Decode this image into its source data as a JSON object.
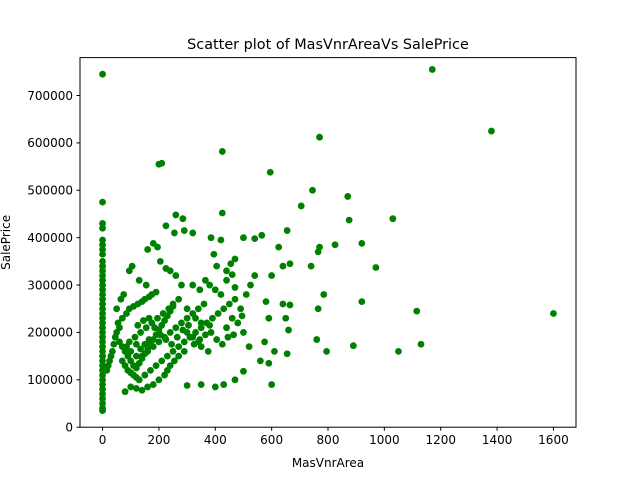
{
  "chart_data": {
    "type": "scatter",
    "title": "Scatter plot of MasVnrAreaVs SalePrice",
    "xlabel": "MasVnrArea",
    "ylabel": "SalePrice",
    "xlim": [
      -80,
      1680
    ],
    "ylim": [
      0,
      780000
    ],
    "xticks": [
      0,
      200,
      400,
      600,
      800,
      1000,
      1200,
      1400,
      1600
    ],
    "yticks": [
      0,
      100000,
      200000,
      300000,
      400000,
      500000,
      600000,
      700000
    ],
    "marker_color": "#008000",
    "grid": false,
    "points": [
      [
        0,
        745000
      ],
      [
        0,
        475000
      ],
      [
        0,
        430000
      ],
      [
        0,
        420000
      ],
      [
        0,
        395000
      ],
      [
        0,
        385000
      ],
      [
        0,
        375000
      ],
      [
        0,
        365000
      ],
      [
        0,
        350000
      ],
      [
        0,
        340000
      ],
      [
        0,
        330000
      ],
      [
        0,
        320000
      ],
      [
        0,
        310000
      ],
      [
        0,
        300000
      ],
      [
        0,
        290000
      ],
      [
        0,
        280000
      ],
      [
        0,
        270000
      ],
      [
        0,
        260000
      ],
      [
        0,
        250000
      ],
      [
        0,
        240000
      ],
      [
        0,
        230000
      ],
      [
        0,
        220000
      ],
      [
        0,
        210000
      ],
      [
        0,
        200000
      ],
      [
        0,
        190000
      ],
      [
        0,
        180000
      ],
      [
        0,
        170000
      ],
      [
        0,
        160000
      ],
      [
        0,
        150000
      ],
      [
        0,
        140000
      ],
      [
        0,
        130000
      ],
      [
        0,
        120000
      ],
      [
        0,
        110000
      ],
      [
        0,
        100000
      ],
      [
        0,
        90000
      ],
      [
        0,
        80000
      ],
      [
        0,
        70000
      ],
      [
        0,
        60000
      ],
      [
        0,
        50000
      ],
      [
        0,
        40000
      ],
      [
        0,
        35000
      ],
      [
        200,
        555000
      ],
      [
        210,
        557000
      ],
      [
        425,
        582000
      ],
      [
        595,
        538000
      ],
      [
        770,
        612000
      ],
      [
        1170,
        755000
      ],
      [
        1380,
        625000
      ],
      [
        1600,
        240000
      ],
      [
        745,
        500000
      ],
      [
        870,
        487000
      ],
      [
        875,
        437000
      ],
      [
        705,
        467000
      ],
      [
        1030,
        440000
      ],
      [
        740,
        340000
      ],
      [
        765,
        370000
      ],
      [
        770,
        380000
      ],
      [
        825,
        385000
      ],
      [
        920,
        388000
      ],
      [
        970,
        337000
      ],
      [
        920,
        265000
      ],
      [
        785,
        280000
      ],
      [
        765,
        250000
      ],
      [
        760,
        185000
      ],
      [
        795,
        160000
      ],
      [
        890,
        172000
      ],
      [
        1050,
        160000
      ],
      [
        1115,
        245000
      ],
      [
        1130,
        175000
      ],
      [
        600,
        90000
      ],
      [
        640,
        260000
      ],
      [
        665,
        258000
      ],
      [
        650,
        230000
      ],
      [
        660,
        205000
      ],
      [
        655,
        155000
      ],
      [
        640,
        340000
      ],
      [
        665,
        345000
      ],
      [
        655,
        415000
      ],
      [
        625,
        380000
      ],
      [
        565,
        405000
      ],
      [
        540,
        398000
      ],
      [
        500,
        400000
      ],
      [
        425,
        452000
      ],
      [
        420,
        395000
      ],
      [
        395,
        365000
      ],
      [
        385,
        400000
      ],
      [
        405,
        340000
      ],
      [
        460,
        322000
      ],
      [
        440,
        310000
      ],
      [
        470,
        295000
      ],
      [
        490,
        250000
      ],
      [
        460,
        230000
      ],
      [
        440,
        210000
      ],
      [
        500,
        200000
      ],
      [
        520,
        170000
      ],
      [
        560,
        140000
      ],
      [
        590,
        135000
      ],
      [
        600,
        320000
      ],
      [
        580,
        265000
      ],
      [
        590,
        230000
      ],
      [
        575,
        180000
      ],
      [
        610,
        160000
      ],
      [
        500,
        118000
      ],
      [
        470,
        100000
      ],
      [
        430,
        90000
      ],
      [
        400,
        85000
      ],
      [
        350,
        90000
      ],
      [
        300,
        88000
      ],
      [
        260,
        448000
      ],
      [
        285,
        440000
      ],
      [
        290,
        415000
      ],
      [
        320,
        410000
      ],
      [
        255,
        410000
      ],
      [
        225,
        425000
      ],
      [
        195,
        380000
      ],
      [
        180,
        388000
      ],
      [
        160,
        375000
      ],
      [
        205,
        350000
      ],
      [
        225,
        335000
      ],
      [
        240,
        330000
      ],
      [
        260,
        320000
      ],
      [
        280,
        300000
      ],
      [
        320,
        300000
      ],
      [
        345,
        290000
      ],
      [
        365,
        310000
      ],
      [
        250,
        260000
      ],
      [
        270,
        270000
      ],
      [
        300,
        250000
      ],
      [
        330,
        230000
      ],
      [
        350,
        220000
      ],
      [
        380,
        215000
      ],
      [
        300,
        200000
      ],
      [
        320,
        190000
      ],
      [
        340,
        180000
      ],
      [
        350,
        170000
      ],
      [
        375,
        160000
      ],
      [
        290,
        160000
      ],
      [
        270,
        150000
      ],
      [
        255,
        140000
      ],
      [
        240,
        130000
      ],
      [
        230,
        120000
      ],
      [
        220,
        110000
      ],
      [
        200,
        100000
      ],
      [
        180,
        90000
      ],
      [
        160,
        85000
      ],
      [
        140,
        78000
      ],
      [
        120,
        82000
      ],
      [
        100,
        85000
      ],
      [
        80,
        75000
      ],
      [
        60,
        210000
      ],
      [
        50,
        200000
      ],
      [
        45,
        190000
      ],
      [
        40,
        175000
      ],
      [
        35,
        160000
      ],
      [
        30,
        150000
      ],
      [
        25,
        140000
      ],
      [
        20,
        130000
      ],
      [
        15,
        120000
      ],
      [
        55,
        220000
      ],
      [
        70,
        230000
      ],
      [
        85,
        240000
      ],
      [
        95,
        250000
      ],
      [
        110,
        255000
      ],
      [
        125,
        260000
      ],
      [
        140,
        265000
      ],
      [
        150,
        270000
      ],
      [
        165,
        275000
      ],
      [
        175,
        280000
      ],
      [
        190,
        285000
      ],
      [
        95,
        330000
      ],
      [
        105,
        340000
      ],
      [
        130,
        310000
      ],
      [
        155,
        300000
      ],
      [
        75,
        280000
      ],
      [
        65,
        270000
      ],
      [
        50,
        250000
      ],
      [
        60,
        180000
      ],
      [
        70,
        170000
      ],
      [
        80,
        160000
      ],
      [
        90,
        150000
      ],
      [
        100,
        140000
      ],
      [
        110,
        130000
      ],
      [
        120,
        125000
      ],
      [
        130,
        135000
      ],
      [
        140,
        145000
      ],
      [
        150,
        155000
      ],
      [
        160,
        165000
      ],
      [
        170,
        175000
      ],
      [
        180,
        185000
      ],
      [
        190,
        195000
      ],
      [
        200,
        205000
      ],
      [
        210,
        215000
      ],
      [
        220,
        225000
      ],
      [
        230,
        235000
      ],
      [
        240,
        245000
      ],
      [
        250,
        255000
      ],
      [
        70,
        140000
      ],
      [
        80,
        130000
      ],
      [
        90,
        120000
      ],
      [
        100,
        115000
      ],
      [
        110,
        110000
      ],
      [
        120,
        105000
      ],
      [
        130,
        100000
      ],
      [
        150,
        110000
      ],
      [
        170,
        120000
      ],
      [
        190,
        130000
      ],
      [
        210,
        140000
      ],
      [
        230,
        150000
      ],
      [
        250,
        160000
      ],
      [
        270,
        170000
      ],
      [
        290,
        180000
      ],
      [
        310,
        190000
      ],
      [
        330,
        200000
      ],
      [
        350,
        210000
      ],
      [
        370,
        220000
      ],
      [
        390,
        230000
      ],
      [
        410,
        240000
      ],
      [
        430,
        250000
      ],
      [
        450,
        260000
      ],
      [
        470,
        270000
      ],
      [
        420,
        280000
      ],
      [
        400,
        290000
      ],
      [
        380,
        300000
      ],
      [
        360,
        260000
      ],
      [
        340,
        250000
      ],
      [
        320,
        240000
      ],
      [
        300,
        230000
      ],
      [
        280,
        220000
      ],
      [
        260,
        210000
      ],
      [
        240,
        200000
      ],
      [
        220,
        190000
      ],
      [
        200,
        180000
      ],
      [
        180,
        170000
      ],
      [
        160,
        160000
      ],
      [
        140,
        150000
      ],
      [
        120,
        150000
      ],
      [
        100,
        160000
      ],
      [
        85,
        170000
      ],
      [
        95,
        180000
      ],
      [
        115,
        190000
      ],
      [
        135,
        200000
      ],
      [
        155,
        210000
      ],
      [
        175,
        220000
      ],
      [
        195,
        230000
      ],
      [
        215,
        240000
      ],
      [
        235,
        250000
      ],
      [
        120,
        175000
      ],
      [
        135,
        165000
      ],
      [
        150,
        175000
      ],
      [
        165,
        185000
      ],
      [
        125,
        215000
      ],
      [
        145,
        225000
      ],
      [
        165,
        230000
      ],
      [
        185,
        210000
      ],
      [
        205,
        195000
      ],
      [
        225,
        185000
      ],
      [
        245,
        175000
      ],
      [
        265,
        190000
      ],
      [
        285,
        205000
      ],
      [
        305,
        215000
      ],
      [
        325,
        175000
      ],
      [
        345,
        185000
      ],
      [
        365,
        195000
      ],
      [
        385,
        200000
      ],
      [
        405,
        185000
      ],
      [
        425,
        175000
      ],
      [
        445,
        190000
      ],
      [
        465,
        195000
      ],
      [
        480,
        220000
      ],
      [
        495,
        235000
      ],
      [
        510,
        280000
      ],
      [
        525,
        300000
      ],
      [
        540,
        320000
      ],
      [
        470,
        355000
      ],
      [
        455,
        345000
      ],
      [
        440,
        330000
      ]
    ]
  }
}
